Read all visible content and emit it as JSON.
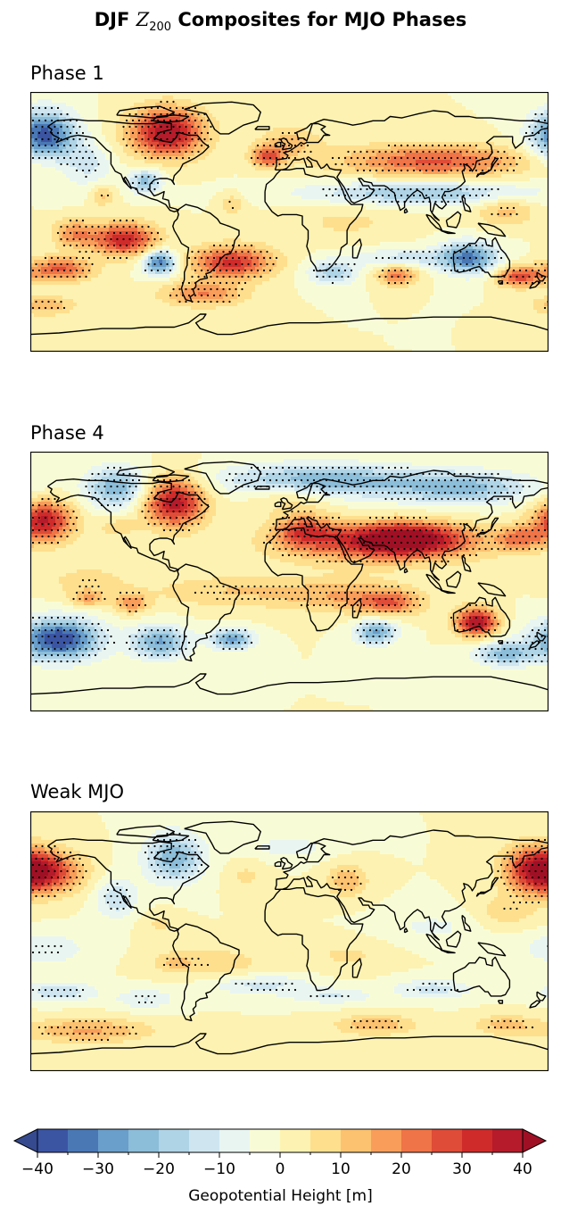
{
  "title_prefix": "DJF",
  "title_symbol": "Z",
  "title_subscript": "200",
  "title_suffix": "Composites for MJO Phases",
  "panels": [
    {
      "title": "Phase 1"
    },
    {
      "title": "Phase 4"
    },
    {
      "title": "Weak MJO"
    }
  ],
  "colorbar": {
    "label": "Geopotential Height [m]",
    "ticks": [
      -40,
      -30,
      -20,
      -10,
      0,
      10,
      20,
      30,
      40
    ],
    "tick_labels": [
      "−40",
      "−30",
      "−20",
      "−10",
      "0",
      "10",
      "20",
      "30",
      "40"
    ],
    "min": -40,
    "max": 40,
    "step": 5,
    "colors": [
      "#3b55a3",
      "#4a78b5",
      "#6a9fcb",
      "#8cbdd9",
      "#afd4e6",
      "#cfe6f0",
      "#e9f5f1",
      "#f8fcd6",
      "#fdf2b1",
      "#fedf8e",
      "#fcc270",
      "#f89e5a",
      "#ef7447",
      "#df4c37",
      "#cf2b2b",
      "#b51b2a"
    ],
    "extend_min_color": "#364a8f",
    "extend_max_color": "#a01025"
  },
  "colors": {
    "coast": "#000000",
    "stipple": "#000000"
  }
}
